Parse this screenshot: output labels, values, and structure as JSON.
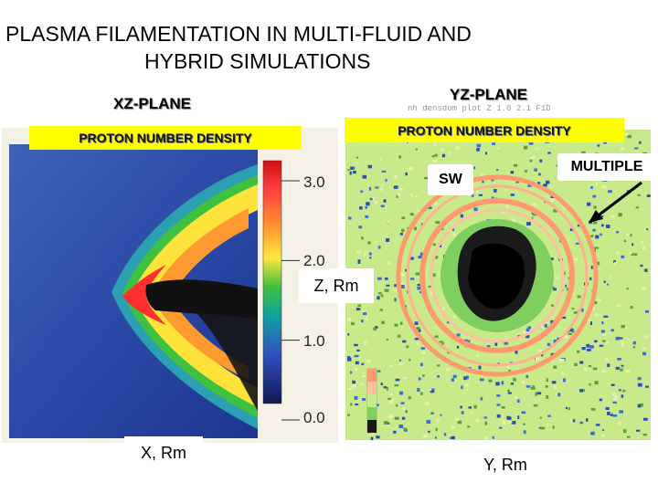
{
  "slide": {
    "title_line1": "PLASMA FILAMENTATION IN MULTI-FLUID AND",
    "title_line2": "HYBRID SIMULATIONS"
  },
  "left_panel": {
    "plane_label": "XZ-PLANE",
    "quantity_label": "PROTON NUMBER DENSITY",
    "colorbar_ticks": [
      "3.0",
      "2.0",
      "1.0",
      "0.0"
    ],
    "colorbar_values": [
      3.0,
      2.0,
      1.0,
      0.0
    ],
    "x_axis_label": "X, Rm",
    "z_axis_label": "Z, Rm"
  },
  "right_panel": {
    "plane_label": "YZ-PLANE",
    "quantity_label": "PROTON NUMBER DENSITY",
    "sw_label": "SW",
    "multiple_label": "MULTIPLE",
    "y_axis_label": "Y, Rm",
    "small_header_text": "nh  densdom plot  Z  1.0  2.1   F1D"
  },
  "colors": {
    "background": "#ffffff",
    "highlight_box": "#ffff00",
    "density_high": "#ff2020",
    "density_mid": "#22aa33",
    "density_low": "#1f3fa0",
    "cavity": "#000000",
    "noise_field": "#c8ea8a"
  }
}
